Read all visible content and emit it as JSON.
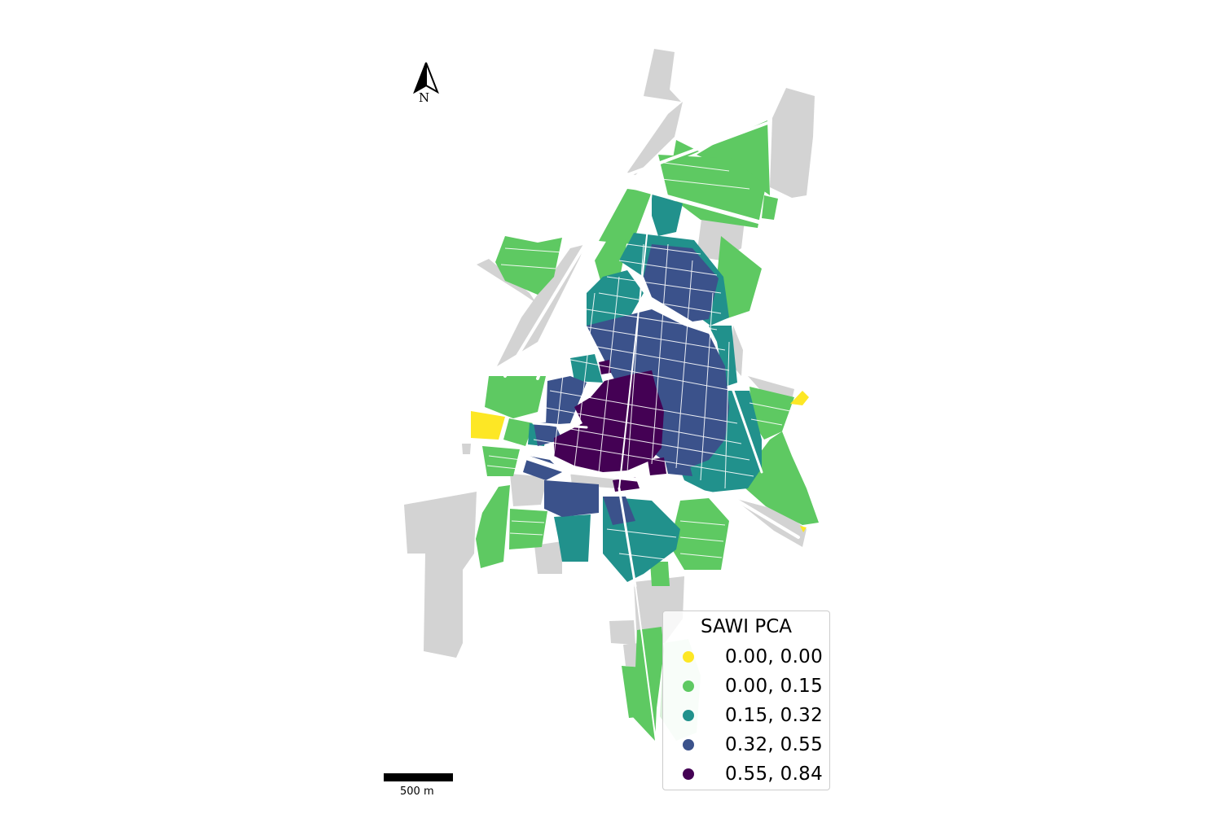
{
  "map": {
    "colors": {
      "background": "#ffffff",
      "no_data": "#d3d3d3",
      "road": "#ffffff"
    },
    "legend": {
      "title": "SAWI PCA",
      "items": [
        {
          "label": "0.00, 0.00",
          "color": "#fde725"
        },
        {
          "label": "0.00, 0.15",
          "color": "#5ec962"
        },
        {
          "label": "0.15, 0.32",
          "color": "#21918c"
        },
        {
          "label": "0.32, 0.55",
          "color": "#3b528b"
        },
        {
          "label": "0.55, 0.84",
          "color": "#440154"
        }
      ]
    },
    "north_arrow": {
      "label": "N",
      "icon": "north-arrow-icon"
    },
    "scale_bar": {
      "label": "500 m"
    }
  }
}
